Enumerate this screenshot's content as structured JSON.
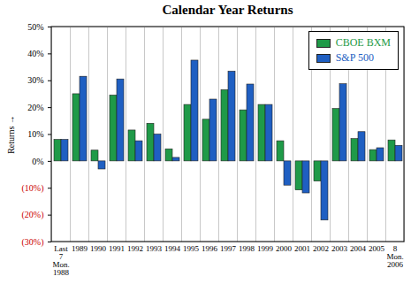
{
  "chart_data": {
    "type": "bar",
    "title": "Calendar Year Returns",
    "categories": [
      "Last\n7\nMon.\n1988",
      "1989",
      "1990",
      "1991",
      "1992",
      "1993",
      "1994",
      "1995",
      "1996",
      "1997",
      "1998",
      "1999",
      "2000",
      "2001",
      "2002",
      "2003",
      "2004",
      "2005",
      "8\nMon.\n2006"
    ],
    "series": [
      {
        "name": "CBOE BXM",
        "color": "#1f9a48",
        "values": [
          8,
          25,
          4,
          24.5,
          11.5,
          14,
          4.5,
          21,
          15.5,
          26.5,
          19,
          21,
          7.5,
          -10.8,
          -7.5,
          19.5,
          8.3,
          4.2,
          7.8
        ]
      },
      {
        "name": "S&P 500",
        "color": "#1f5fc2",
        "values": [
          8,
          31.5,
          -3,
          30.5,
          7.5,
          10,
          1.3,
          37.5,
          23,
          33.4,
          28.6,
          21,
          -9,
          -11.9,
          -22,
          28.7,
          10.9,
          4.9,
          5.8
        ]
      }
    ],
    "ylabel": "Returns",
    "ylim": [
      -30,
      50
    ],
    "yticks": [
      {
        "value": -30,
        "label": "(30%)"
      },
      {
        "value": -20,
        "label": "(20%)"
      },
      {
        "value": -10,
        "label": "(10%)"
      },
      {
        "value": 0,
        "label": "0%"
      },
      {
        "value": 10,
        "label": "10%"
      },
      {
        "value": 20,
        "label": "20%"
      },
      {
        "value": 30,
        "label": "30%"
      },
      {
        "value": 40,
        "label": "40%"
      },
      {
        "value": 50,
        "label": "50%"
      }
    ],
    "grid": true,
    "legend": "top-right"
  }
}
